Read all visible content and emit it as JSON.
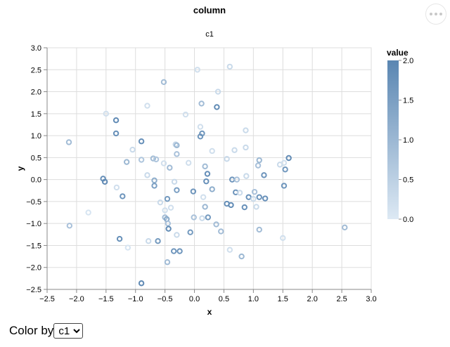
{
  "chart_data": {
    "type": "scatter",
    "title": "column",
    "subtitle": "c1",
    "xlabel": "x",
    "ylabel": "y",
    "xlim": [
      -2.5,
      3.0
    ],
    "ylim": [
      -2.5,
      3.0
    ],
    "xticks": [
      "−2.5",
      "−2.0",
      "−1.5",
      "−1.0",
      "−0.5",
      "0.0",
      "0.5",
      "1.0",
      "1.5",
      "2.0",
      "2.5",
      "3.0"
    ],
    "yticks": [
      "−2.5",
      "−2.0",
      "−1.5",
      "−1.0",
      "−0.5",
      "0.0",
      "0.5",
      "1.0",
      "1.5",
      "2.0",
      "2.5",
      "3.0"
    ],
    "grid": true,
    "legend": {
      "title": "value",
      "position": "right",
      "range": [
        0.0,
        2.0
      ],
      "ticks": [
        "0.0",
        "0.5",
        "1.0",
        "1.5",
        "2.0"
      ],
      "color_low": "#dde9f4",
      "color_high": "#5a86b2"
    },
    "points": [
      {
        "x": -2.13,
        "y": 0.85,
        "v": 0.9
      },
      {
        "x": -2.12,
        "y": -1.05,
        "v": 0.8
      },
      {
        "x": -1.8,
        "y": -0.75,
        "v": 0.1
      },
      {
        "x": -1.55,
        "y": 0.02,
        "v": 1.8
      },
      {
        "x": -1.52,
        "y": -0.05,
        "v": 1.9
      },
      {
        "x": -1.5,
        "y": 1.5,
        "v": 0.2
      },
      {
        "x": -1.33,
        "y": 1.35,
        "v": 1.9
      },
      {
        "x": -1.33,
        "y": 1.05,
        "v": 1.8
      },
      {
        "x": -1.32,
        "y": -0.18,
        "v": 0.2
      },
      {
        "x": -1.27,
        "y": -1.35,
        "v": 1.8
      },
      {
        "x": -1.22,
        "y": -0.38,
        "v": 1.7
      },
      {
        "x": -1.15,
        "y": 0.4,
        "v": 1.0
      },
      {
        "x": -1.13,
        "y": -1.55,
        "v": 0.1
      },
      {
        "x": -1.05,
        "y": 0.68,
        "v": 0.3
      },
      {
        "x": -0.9,
        "y": 0.87,
        "v": 1.8
      },
      {
        "x": -0.9,
        "y": 0.45,
        "v": 0.7
      },
      {
        "x": -0.9,
        "y": -2.36,
        "v": 1.9
      },
      {
        "x": -0.8,
        "y": 1.68,
        "v": 0.2
      },
      {
        "x": -0.8,
        "y": 0.1,
        "v": 0.3
      },
      {
        "x": -0.78,
        "y": -1.4,
        "v": 0.3
      },
      {
        "x": -0.7,
        "y": 0.48,
        "v": 0.9
      },
      {
        "x": -0.68,
        "y": -0.02,
        "v": 1.2
      },
      {
        "x": -0.68,
        "y": -0.14,
        "v": 1.5
      },
      {
        "x": -0.65,
        "y": 0.46,
        "v": 0.7
      },
      {
        "x": -0.62,
        "y": -1.4,
        "v": 1.6
      },
      {
        "x": -0.58,
        "y": -0.52,
        "v": 0.3
      },
      {
        "x": -0.52,
        "y": 2.22,
        "v": 0.9
      },
      {
        "x": -0.52,
        "y": 0.37,
        "v": 0.2
      },
      {
        "x": -0.5,
        "y": -0.7,
        "v": 0.2
      },
      {
        "x": -0.5,
        "y": -0.86,
        "v": 0.9
      },
      {
        "x": -0.47,
        "y": -0.9,
        "v": 1.3
      },
      {
        "x": -0.46,
        "y": -0.44,
        "v": 1.6
      },
      {
        "x": -0.46,
        "y": -1.88,
        "v": 0.9
      },
      {
        "x": -0.45,
        "y": -1.0,
        "v": 0.8
      },
      {
        "x": -0.44,
        "y": -1.12,
        "v": 1.9
      },
      {
        "x": -0.42,
        "y": 0.27,
        "v": 0.9
      },
      {
        "x": -0.4,
        "y": -0.64,
        "v": 0.2
      },
      {
        "x": -0.35,
        "y": -1.63,
        "v": 1.7
      },
      {
        "x": -0.34,
        "y": -0.05,
        "v": 0.3
      },
      {
        "x": -0.32,
        "y": 0.8,
        "v": 0.4
      },
      {
        "x": -0.3,
        "y": 0.78,
        "v": 1.0
      },
      {
        "x": -0.3,
        "y": 0.58,
        "v": 0.8
      },
      {
        "x": -0.3,
        "y": -0.24,
        "v": 1.5
      },
      {
        "x": -0.3,
        "y": -1.26,
        "v": 0.3
      },
      {
        "x": -0.25,
        "y": -1.63,
        "v": 1.7
      },
      {
        "x": -0.15,
        "y": 1.48,
        "v": 0.2
      },
      {
        "x": -0.1,
        "y": 0.38,
        "v": 0.2
      },
      {
        "x": -0.07,
        "y": -1.2,
        "v": 1.6
      },
      {
        "x": -0.02,
        "y": -0.27,
        "v": 1.7
      },
      {
        "x": -0.01,
        "y": -0.86,
        "v": 0.8
      },
      {
        "x": 0.05,
        "y": 2.5,
        "v": 0.2
      },
      {
        "x": 0.1,
        "y": 1.2,
        "v": 0.2
      },
      {
        "x": 0.1,
        "y": 0.98,
        "v": 1.7
      },
      {
        "x": 0.12,
        "y": 1.73,
        "v": 0.9
      },
      {
        "x": 0.13,
        "y": 1.05,
        "v": 1.7
      },
      {
        "x": 0.13,
        "y": -0.88,
        "v": 0.3
      },
      {
        "x": 0.15,
        "y": -0.4,
        "v": 0.2
      },
      {
        "x": 0.18,
        "y": 0.3,
        "v": 0.9
      },
      {
        "x": 0.18,
        "y": -0.62,
        "v": 1.0
      },
      {
        "x": 0.2,
        "y": -0.04,
        "v": 1.8
      },
      {
        "x": 0.22,
        "y": 0.13,
        "v": 1.8
      },
      {
        "x": 0.23,
        "y": -0.86,
        "v": 1.6
      },
      {
        "x": 0.3,
        "y": -0.22,
        "v": 1.2
      },
      {
        "x": 0.3,
        "y": 0.65,
        "v": 0.2
      },
      {
        "x": 0.37,
        "y": -1.02,
        "v": 0.9
      },
      {
        "x": 0.38,
        "y": 1.65,
        "v": 1.9
      },
      {
        "x": 0.4,
        "y": 2.0,
        "v": 0.3
      },
      {
        "x": 0.45,
        "y": -1.18,
        "v": 0.9
      },
      {
        "x": 0.55,
        "y": -0.55,
        "v": 1.8
      },
      {
        "x": 0.55,
        "y": 0.47,
        "v": 0.3
      },
      {
        "x": 0.6,
        "y": 2.57,
        "v": 0.3
      },
      {
        "x": 0.6,
        "y": -1.6,
        "v": 0.2
      },
      {
        "x": 0.62,
        "y": -0.58,
        "v": 1.9
      },
      {
        "x": 0.64,
        "y": 0.0,
        "v": 1.7
      },
      {
        "x": 0.68,
        "y": 0.67,
        "v": 0.3
      },
      {
        "x": 0.7,
        "y": -0.29,
        "v": 1.7
      },
      {
        "x": 0.72,
        "y": 0.0,
        "v": 0.8
      },
      {
        "x": 0.77,
        "y": -0.3,
        "v": 0.3
      },
      {
        "x": 0.8,
        "y": -1.75,
        "v": 1.0
      },
      {
        "x": 0.85,
        "y": -0.63,
        "v": 1.8
      },
      {
        "x": 0.87,
        "y": 0.73,
        "v": 0.3
      },
      {
        "x": 0.87,
        "y": 1.12,
        "v": 0.3
      },
      {
        "x": 0.88,
        "y": 0.08,
        "v": 0.3
      },
      {
        "x": 0.92,
        "y": -0.4,
        "v": 1.8
      },
      {
        "x": 1.0,
        "y": -0.44,
        "v": 0.3
      },
      {
        "x": 1.02,
        "y": -0.28,
        "v": 0.8
      },
      {
        "x": 1.05,
        "y": -0.62,
        "v": 0.3
      },
      {
        "x": 1.08,
        "y": 0.32,
        "v": 0.8
      },
      {
        "x": 1.1,
        "y": 0.44,
        "v": 1.0
      },
      {
        "x": 1.1,
        "y": -1.14,
        "v": 0.9
      },
      {
        "x": 1.1,
        "y": -0.4,
        "v": 1.7
      },
      {
        "x": 1.18,
        "y": 0.1,
        "v": 1.7
      },
      {
        "x": 1.2,
        "y": -0.43,
        "v": 1.8
      },
      {
        "x": 1.45,
        "y": 0.34,
        "v": 0.3
      },
      {
        "x": 1.5,
        "y": -1.33,
        "v": 0.2
      },
      {
        "x": 1.52,
        "y": -0.14,
        "v": 1.7
      },
      {
        "x": 1.52,
        "y": 0.38,
        "v": 0.2
      },
      {
        "x": 1.54,
        "y": 0.23,
        "v": 1.6
      },
      {
        "x": 1.6,
        "y": 0.49,
        "v": 1.9
      },
      {
        "x": 2.55,
        "y": -1.09,
        "v": 0.9
      }
    ]
  },
  "toolbar": {
    "menu_icon": "ellipsis-icon"
  },
  "controls": {
    "color_by_label": "Color by",
    "color_by_selected": "c1"
  }
}
